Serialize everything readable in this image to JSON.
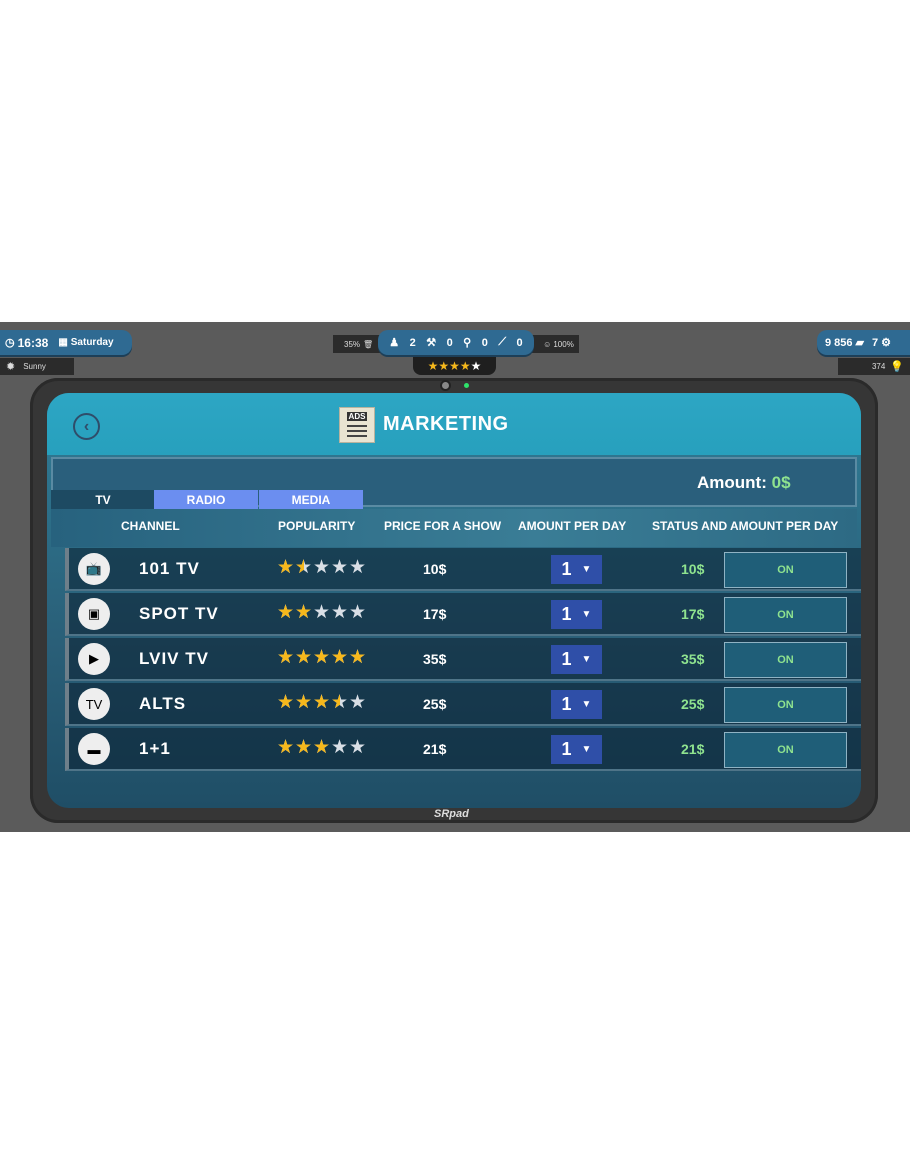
{
  "hud": {
    "time": "16:38",
    "day": "Saturday",
    "weather": "Sunny",
    "trash_pct": "35%",
    "workers": "2",
    "builders": "0",
    "cleaners": "0",
    "guards": "0",
    "happiness": "100%",
    "rating_stars": 4,
    "money": "9 856",
    "gems": "7",
    "energy": "374"
  },
  "tablet": {
    "brand": "SRpad"
  },
  "header": {
    "title": "MARKETING",
    "ads_label": "ADS"
  },
  "amount": {
    "label": "Amount:",
    "value": "0$"
  },
  "tabs": [
    {
      "label": "TV"
    },
    {
      "label": "RADIO"
    },
    {
      "label": "MEDIA"
    }
  ],
  "columns": [
    "CHANNEL",
    "POPULARITY",
    "PRICE FOR A SHOW",
    "AMOUNT PER DAY",
    "STATUS AND AMOUNT PER DAY"
  ],
  "rows": [
    {
      "name": "101 TV",
      "popularity": 1.5,
      "price": "10$",
      "per_day": "1",
      "amount": "10$",
      "status": "ON"
    },
    {
      "name": "SPOT TV",
      "popularity": 2,
      "price": "17$",
      "per_day": "1",
      "amount": "17$",
      "status": "ON"
    },
    {
      "name": "LVIV TV",
      "popularity": 5,
      "price": "35$",
      "per_day": "1",
      "amount": "35$",
      "status": "ON"
    },
    {
      "name": "ALTS",
      "popularity": 3.5,
      "price": "25$",
      "per_day": "1",
      "amount": "25$",
      "status": "ON"
    },
    {
      "name": "1+1",
      "popularity": 3,
      "price": "21$",
      "per_day": "1",
      "amount": "21$",
      "status": "ON"
    }
  ],
  "colors": {
    "accent": "#27a0bd",
    "tab_active": "#6b8ef0",
    "green": "#8fe38f",
    "star": "#f6b81c"
  }
}
